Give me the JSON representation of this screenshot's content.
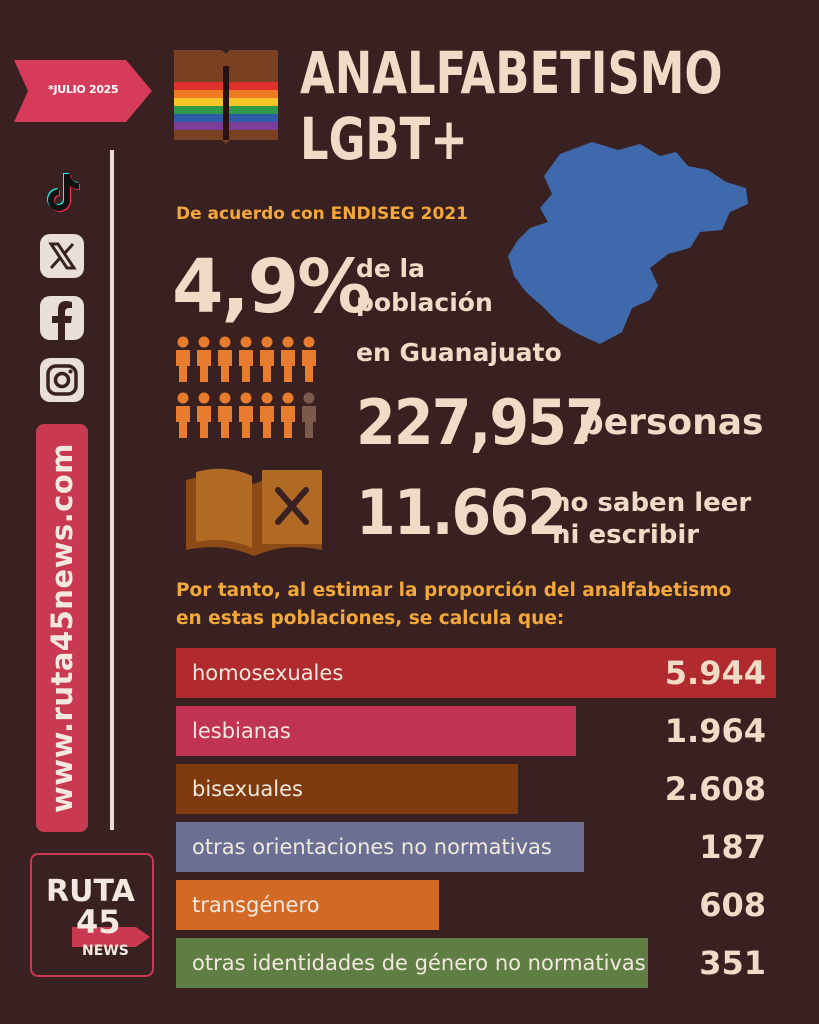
{
  "header": {
    "date_tag": "*JULIO 2025",
    "title_line1": "ANALFABETISMO",
    "title_line2": "LGBT+"
  },
  "sidebar": {
    "social_icons": [
      "tiktok-icon",
      "x-icon",
      "facebook-icon",
      "instagram-icon"
    ],
    "url": "www.ruta45news.com",
    "logo": {
      "line1": "RUTA",
      "line2": "45",
      "line3": "NEWS"
    }
  },
  "stats": {
    "source": "De acuerdo con ENDISEG 2021",
    "percent": "4,9%",
    "percent_line1": "de la",
    "percent_line2": "población",
    "state": "en Guanajuato",
    "persons_value": "227,957",
    "persons_label": "personas",
    "illiterate_value": "11.662",
    "illiterate_line1": "no saben leer",
    "illiterate_line2": "ni escribir"
  },
  "intro": {
    "line1": "Por tanto, al estimar la proporción del analfabetismo",
    "line2": "en estas poblaciones, se calcula que:"
  },
  "colors": {
    "background": "#3a2121",
    "cream": "#f0dcc6",
    "accent_orange": "#f2a83a",
    "map_blue": "#3e6aad",
    "brand_pink": "#c93a52"
  },
  "chart_data": {
    "type": "bar",
    "orientation": "horizontal",
    "categories": [
      "homosexuales",
      "lesbianas",
      "bisexuales",
      "otras orientaciones no normativas",
      "transgénero",
      "otras identidades de género no normativas"
    ],
    "values": [
      5944,
      1964,
      2608,
      187,
      608,
      351
    ],
    "value_labels": [
      "5.944",
      "1.964",
      "2.608",
      "187",
      "608",
      "351"
    ],
    "colors": [
      "#b02a2e",
      "#c03352",
      "#7f3b0f",
      "#6a6f93",
      "#d26a26",
      "#5e7e43"
    ]
  }
}
